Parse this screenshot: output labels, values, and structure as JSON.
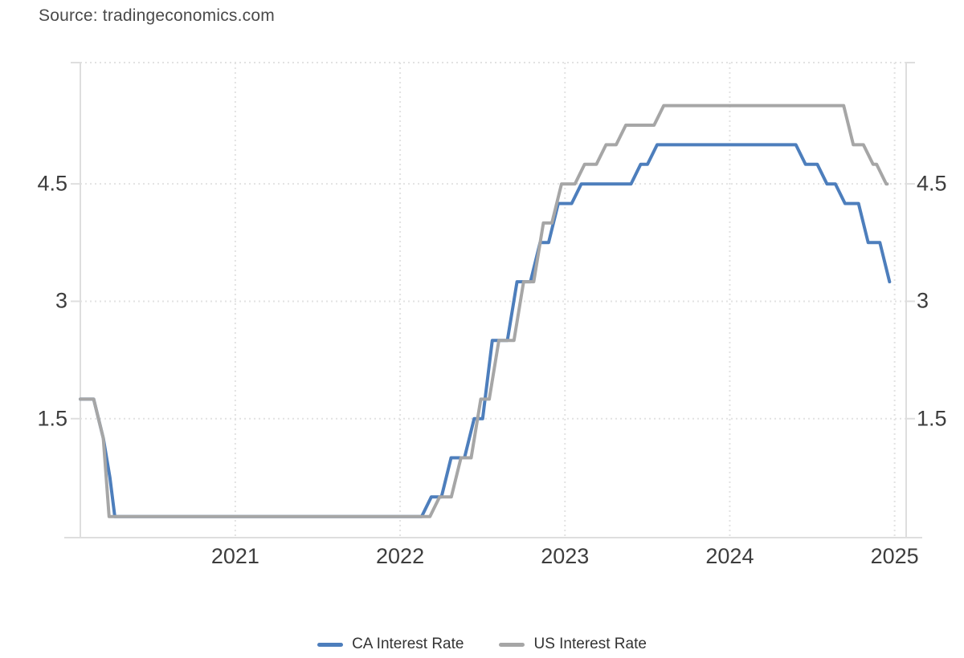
{
  "source": {
    "label": "Source: tradingeconomics.com"
  },
  "legend": {
    "items": [
      {
        "label": "CA Interest Rate",
        "color": "#4d7ebc"
      },
      {
        "label": "US Interest Rate",
        "color": "#a6a6a6"
      }
    ]
  },
  "colors": {
    "background": "#ffffff",
    "axis_line": "#dedede",
    "grid_dots": "#e2e2e2",
    "tick_text": "#3d3d3d",
    "source_text": "#4a4a4a",
    "legend_text": "#333333",
    "ca_line": "#4d7ebc",
    "us_line": "#a6a6a6"
  },
  "chart_data": {
    "type": "line",
    "title": "",
    "xlabel": "",
    "ylabel": "",
    "grid": "dotted",
    "legend_position": "bottom",
    "x_axis": {
      "ticks": [
        2021,
        2022,
        2023,
        2024,
        2025
      ],
      "tick_labels": [
        "2021",
        "2022",
        "2023",
        "2024",
        "2025"
      ],
      "range": [
        2020.06,
        2025.07
      ]
    },
    "y_axis": {
      "ticks": [
        1.5,
        3,
        4.5
      ],
      "tick_labels": [
        "1.5",
        "3",
        "4.5"
      ],
      "range": [
        -0.02,
        6.05
      ],
      "sides": "left-and-right"
    },
    "series": [
      {
        "name": "CA Interest Rate",
        "color": "#4d7ebc",
        "style": "step",
        "end": 2024.955,
        "steps": [
          [
            2020.06,
            1.75
          ],
          [
            2020.17,
            1.25
          ],
          [
            2020.21,
            0.75
          ],
          [
            2020.24,
            0.25
          ],
          [
            2022.16,
            0.5
          ],
          [
            2022.28,
            1.0
          ],
          [
            2022.42,
            1.5
          ],
          [
            2022.53,
            2.5
          ],
          [
            2022.68,
            3.25
          ],
          [
            2022.82,
            3.75
          ],
          [
            2022.93,
            4.25
          ],
          [
            2023.07,
            4.5
          ],
          [
            2023.43,
            4.75
          ],
          [
            2023.53,
            5.0
          ],
          [
            2024.43,
            4.75
          ],
          [
            2024.56,
            4.5
          ],
          [
            2024.67,
            4.25
          ],
          [
            2024.81,
            3.75
          ],
          [
            2024.94,
            3.25
          ]
        ]
      },
      {
        "name": "US Interest Rate",
        "color": "#a6a6a6",
        "style": "step",
        "end": 2024.955,
        "steps": [
          [
            2020.06,
            1.75
          ],
          [
            2020.17,
            1.25
          ],
          [
            2020.205,
            0.25
          ],
          [
            2022.21,
            0.5
          ],
          [
            2022.34,
            1.0
          ],
          [
            2022.46,
            1.75
          ],
          [
            2022.57,
            2.5
          ],
          [
            2022.72,
            3.25
          ],
          [
            2022.84,
            4.0
          ],
          [
            2022.95,
            4.5
          ],
          [
            2023.09,
            4.75
          ],
          [
            2023.22,
            5.0
          ],
          [
            2023.34,
            5.25
          ],
          [
            2023.57,
            5.5
          ],
          [
            2024.72,
            5.0
          ],
          [
            2024.84,
            4.75
          ],
          [
            2024.92,
            4.5
          ]
        ]
      }
    ]
  }
}
